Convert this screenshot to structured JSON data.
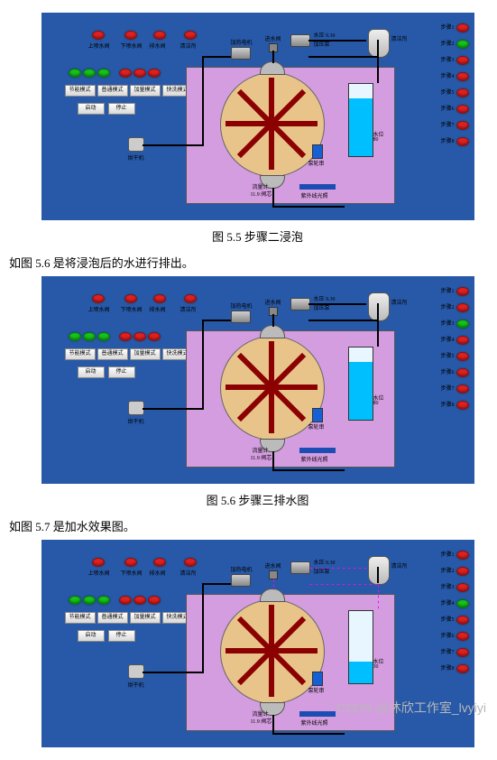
{
  "captions": {
    "fig55": "图 5.5  步骤二浸泡",
    "para56": "如图 5.6 是将浸泡后的水进行排出。",
    "fig56": "图 5.6    步骤三排水图",
    "para57": "如图 5.7 是加水效果图。",
    "watermark": "CSDN @沐欣工作室_lvyiyi"
  },
  "panel_bg": "#2759a8",
  "purple": "#d49de0",
  "circle_fill": "#e8c48a",
  "tank_border": "#333333",
  "tank_bg": "#e8f6ff",
  "wash_level_label": "水位",
  "top_valve_labels": [
    "上喷水阀",
    "下喷水阀",
    "排水阀",
    "清洁剂"
  ],
  "mode_buttons": [
    "节能模式",
    "普通模式",
    "加量模式",
    "快洗模式"
  ],
  "ctrl_buttons": [
    "启动",
    "停止"
  ],
  "top_devices": {
    "inlet_valve": "进水阀",
    "pressure": "水压",
    "pump": "加压泵",
    "cleaner": "清洁剂",
    "heater": "加热电机"
  },
  "bottom_labels": {
    "dryer": "烘干机",
    "flow": "流量计",
    "flow_val": "11.9 阀芯",
    "uv": "紫外线光照",
    "booster": "泵轮串"
  },
  "steps": [
    "步骤1",
    "步骤2",
    "步骤3",
    "步骤4",
    "步骤5",
    "步骤6",
    "步骤7",
    "步骤8"
  ],
  "lamp_red": "#e02020",
  "lamp_green": "#14c21a",
  "screens": [
    {
      "pressure_val": "9.30",
      "wash_level": "80",
      "water_h": 64,
      "active_step": 1,
      "dotted": false
    },
    {
      "pressure_val": "9.30",
      "wash_level": "80",
      "water_h": 64,
      "active_step": 2,
      "dotted": false
    },
    {
      "pressure_val": "9.30",
      "wash_level": "30",
      "water_h": 24,
      "active_step": 3,
      "dotted": true
    }
  ]
}
